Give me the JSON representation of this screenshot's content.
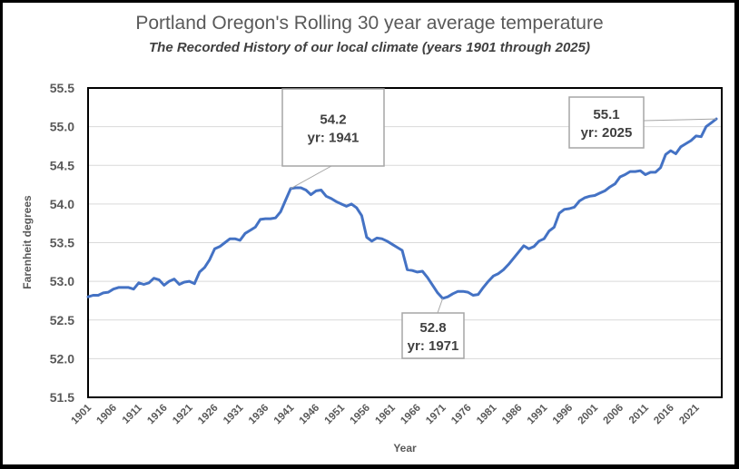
{
  "chart_data": {
    "type": "line",
    "title": "Portland Oregon's Rolling 30 year average temperature",
    "subtitle": "The Recorded History of our local climate (years 1901 through 2025)",
    "xlabel": "Year",
    "ylabel": "Farenheit degrees",
    "xlim": [
      1901,
      2025
    ],
    "ylim": [
      51.5,
      55.5
    ],
    "yticks": [
      "51.5",
      "52.0",
      "52.5",
      "53.0",
      "53.5",
      "54.0",
      "54.5",
      "55.0",
      "55.5"
    ],
    "ytick_values": [
      51.5,
      52.0,
      52.5,
      53.0,
      53.5,
      54.0,
      54.5,
      55.0,
      55.5
    ],
    "xticks": [
      "1901",
      "1906",
      "1911",
      "1916",
      "1921",
      "1926",
      "1931",
      "1936",
      "1941",
      "1946",
      "1951",
      "1956",
      "1961",
      "1966",
      "1971",
      "1976",
      "1981",
      "1986",
      "1991",
      "1996",
      "2001",
      "2006",
      "2011",
      "2016",
      "2021"
    ],
    "grid": true,
    "legend": "none",
    "series": [
      {
        "name": "Rolling 30 year average",
        "color": "#4472c4",
        "x": [
          1901,
          1902,
          1903,
          1904,
          1905,
          1906,
          1907,
          1908,
          1909,
          1910,
          1911,
          1912,
          1913,
          1914,
          1915,
          1916,
          1917,
          1918,
          1919,
          1920,
          1921,
          1922,
          1923,
          1924,
          1925,
          1926,
          1927,
          1928,
          1929,
          1930,
          1931,
          1932,
          1933,
          1934,
          1935,
          1936,
          1937,
          1938,
          1939,
          1940,
          1941,
          1942,
          1943,
          1944,
          1945,
          1946,
          1947,
          1948,
          1949,
          1950,
          1951,
          1952,
          1953,
          1954,
          1955,
          1956,
          1957,
          1958,
          1959,
          1960,
          1961,
          1962,
          1963,
          1964,
          1965,
          1966,
          1967,
          1968,
          1969,
          1970,
          1971,
          1972,
          1973,
          1974,
          1975,
          1976,
          1977,
          1978,
          1979,
          1980,
          1981,
          1982,
          1983,
          1984,
          1985,
          1986,
          1987,
          1988,
          1989,
          1990,
          1991,
          1992,
          1993,
          1994,
          1995,
          1996,
          1997,
          1998,
          1999,
          2000,
          2001,
          2002,
          2003,
          2004,
          2005,
          2006,
          2007,
          2008,
          2009,
          2010,
          2011,
          2012,
          2013,
          2014,
          2015,
          2016,
          2017,
          2018,
          2019,
          2020,
          2021,
          2022,
          2023,
          2024,
          2025
        ],
        "values": [
          52.8,
          52.82,
          52.82,
          52.85,
          52.86,
          52.9,
          52.92,
          52.92,
          52.92,
          52.9,
          52.98,
          52.96,
          52.98,
          53.04,
          53.02,
          52.95,
          53.0,
          53.03,
          52.96,
          52.99,
          53.0,
          52.97,
          53.12,
          53.18,
          53.28,
          53.42,
          53.45,
          53.5,
          53.55,
          53.55,
          53.53,
          53.62,
          53.66,
          53.7,
          53.8,
          53.81,
          53.81,
          53.82,
          53.9,
          54.05,
          54.2,
          54.21,
          54.21,
          54.18,
          54.12,
          54.17,
          54.18,
          54.1,
          54.07,
          54.03,
          54.0,
          53.97,
          54.0,
          53.95,
          53.85,
          53.57,
          53.52,
          53.56,
          53.55,
          53.52,
          53.48,
          53.44,
          53.4,
          53.15,
          53.14,
          53.12,
          53.13,
          53.05,
          52.95,
          52.85,
          52.78,
          52.8,
          52.84,
          52.87,
          52.87,
          52.86,
          52.82,
          52.83,
          52.92,
          53.0,
          53.07,
          53.1,
          53.15,
          53.22,
          53.3,
          53.38,
          53.46,
          53.42,
          53.45,
          53.52,
          53.55,
          53.65,
          53.7,
          53.88,
          53.93,
          53.94,
          53.96,
          54.04,
          54.08,
          54.1,
          54.11,
          54.14,
          54.17,
          54.22,
          54.26,
          54.35,
          54.38,
          54.42,
          54.42,
          54.43,
          54.38,
          54.41,
          54.41,
          54.47,
          54.64,
          54.69,
          54.65,
          54.74,
          54.78,
          54.82,
          54.88,
          54.87,
          55.0,
          55.05,
          55.1
        ]
      }
    ],
    "annotations": [
      {
        "value": "54.2",
        "label": "yr: 1941",
        "x": 1941,
        "y": 54.2
      },
      {
        "value": "52.8",
        "label": "yr: 1971",
        "x": 1971,
        "y": 52.78
      },
      {
        "value": "55.1",
        "label": "yr: 2025",
        "x": 2025,
        "y": 55.1
      }
    ]
  }
}
